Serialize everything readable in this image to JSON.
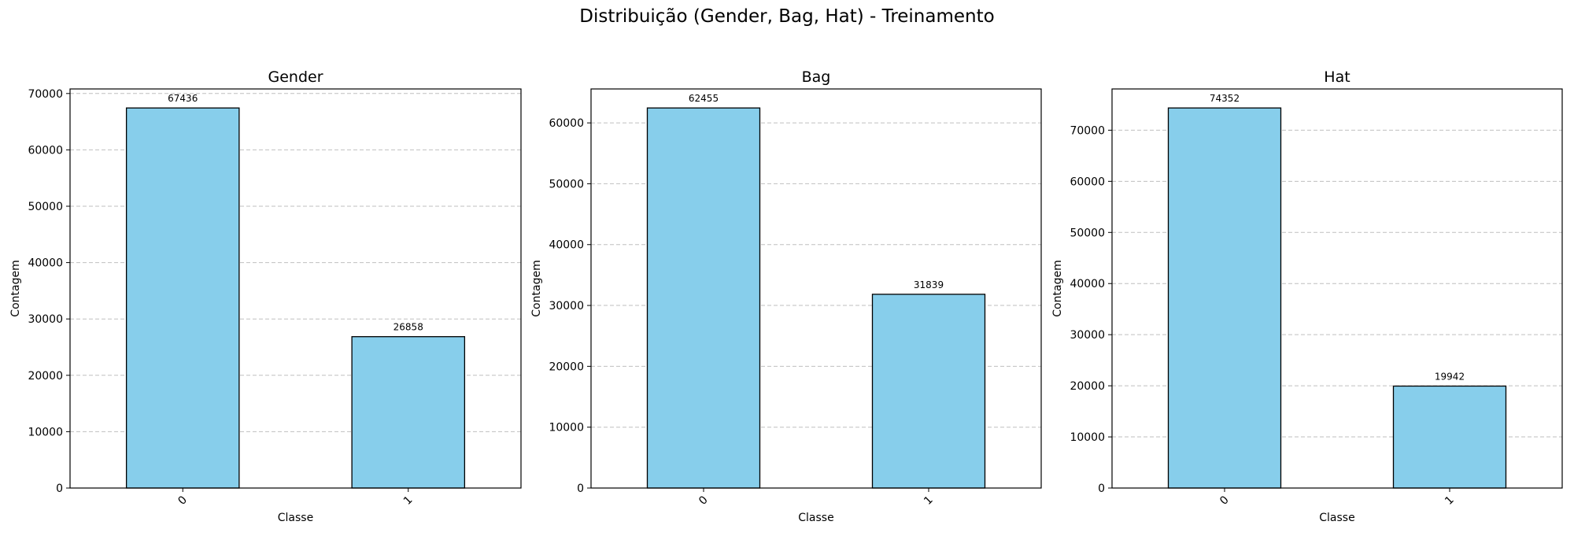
{
  "suptitle": "Distribuição (Gender, Bag, Hat) - Treinamento",
  "colors": {
    "bar_fill": "#87ceeb",
    "bar_edge": "#000000",
    "grid": "#b0b0b0"
  },
  "chart_data": [
    {
      "type": "bar",
      "title": "Gender",
      "xlabel": "Classe",
      "ylabel": "Contagem",
      "categories": [
        "0",
        "1"
      ],
      "values": [
        67436,
        26858
      ],
      "data_labels": [
        "67436",
        "26858"
      ],
      "ylim": [
        0,
        70809
      ],
      "yticks": [
        0,
        10000,
        20000,
        30000,
        40000,
        50000,
        60000,
        70000
      ],
      "grid": "y-dashed",
      "xtick_rotation": 45
    },
    {
      "type": "bar",
      "title": "Bag",
      "xlabel": "Classe",
      "ylabel": "Contagem",
      "categories": [
        "0",
        "1"
      ],
      "values": [
        62455,
        31839
      ],
      "data_labels": [
        "62455",
        "31839"
      ],
      "ylim": [
        0,
        65578
      ],
      "yticks": [
        0,
        10000,
        20000,
        30000,
        40000,
        50000,
        60000
      ],
      "grid": "y-dashed",
      "xtick_rotation": 45
    },
    {
      "type": "bar",
      "title": "Hat",
      "xlabel": "Classe",
      "ylabel": "Contagem",
      "categories": [
        "0",
        "1"
      ],
      "values": [
        74352,
        19942
      ],
      "data_labels": [
        "74352",
        "19942"
      ],
      "ylim": [
        0,
        78070
      ],
      "yticks": [
        0,
        10000,
        20000,
        30000,
        40000,
        50000,
        60000,
        70000
      ],
      "grid": "y-dashed",
      "xtick_rotation": 45
    }
  ]
}
